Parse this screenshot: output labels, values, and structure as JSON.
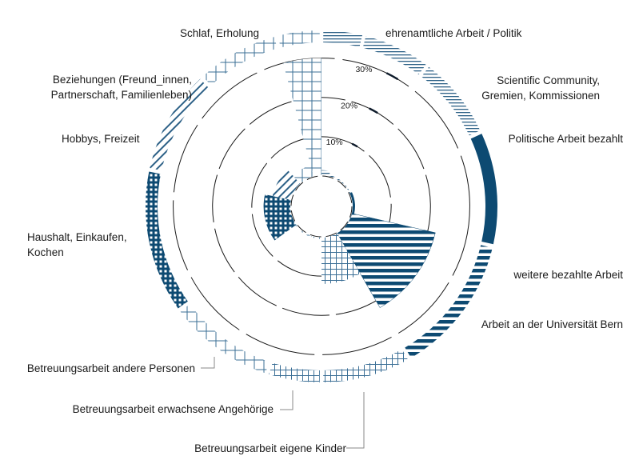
{
  "colors": {
    "dark": "#0d4a72",
    "mid": "#3b6f96",
    "light": "#6f93b1",
    "hatch": "#2d6187",
    "background": "#ffffff"
  },
  "chart_data": {
    "type": "radial-bar",
    "title": "",
    "rings": [
      "10%",
      "20%",
      "30%"
    ],
    "r_max_percent": 35,
    "categories": [
      "ehrenamtliche Arbeit / Politik",
      "Scientific Community, Gremien, Kommissionen",
      "Politische Arbeit bezahlt",
      "weitere bezahlte Arbeit",
      "Arbeit an der Universität Bern",
      "Betreuungsarbeit eigene Kinder",
      "Betreuungsarbeit erwachsene Angehörige",
      "Betreuungsarbeit andere Personen",
      "Haushalt, Einkaufen, Kochen",
      "Hobbys, Freizeit",
      "Beziehungen (Freund_innen, Partnerschaft, Familienleben)",
      "Schlaf, Erholung"
    ],
    "values": [
      1.5,
      0.5,
      0.3,
      0.8,
      22,
      12,
      0.5,
      0.5,
      7,
      5,
      3,
      30
    ],
    "labels": [
      {
        "lines": [
          "ehrenamtliche Arbeit / Politik"
        ]
      },
      {
        "lines": [
          "Scientific Community,",
          "Gremien, Kommissionen"
        ]
      },
      {
        "lines": [
          "Politische Arbeit bezahlt"
        ]
      },
      {
        "lines": [
          "weitere bezahlte Arbeit"
        ]
      },
      {
        "lines": [
          "Arbeit an der Universität Bern"
        ]
      },
      {
        "lines": [
          "Betreuungsarbeit eigene Kinder"
        ]
      },
      {
        "lines": [
          "Betreuungsarbeit erwachsene Angehörige"
        ]
      },
      {
        "lines": [
          "Betreuungsarbeit andere Personen"
        ]
      },
      {
        "lines": [
          "Haushalt, Einkaufen,",
          "Kochen"
        ]
      },
      {
        "lines": [
          "Hobbys, Freizeit"
        ]
      },
      {
        "lines": [
          "Beziehungen (Freund_innen,",
          "Partnerschaft, Familienleben)"
        ]
      },
      {
        "lines": [
          "Schlaf, Erholung"
        ]
      }
    ],
    "grid": true,
    "legend": "none"
  }
}
